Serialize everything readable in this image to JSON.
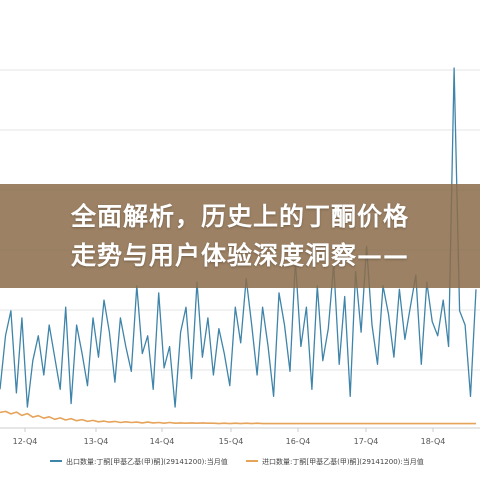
{
  "overlay": {
    "line1": "全面解析，历史上的丁酮价格",
    "line2": "走势与用户体验深度洞察——"
  },
  "colors": {
    "export_series": "#3f84a9",
    "import_series": "#e6a35a",
    "overlay_bg": "#8c6c4a",
    "grid": "#e6e6e6"
  },
  "chart_data": {
    "type": "line",
    "grid": true,
    "legend_position": "bottom",
    "title": "",
    "xlabel": "",
    "ylabel": "",
    "x_tick_labels": [
      "12-Q4",
      "13-Q4",
      "14-Q4",
      "15-Q4",
      "16-Q4",
      "17-Q4",
      "18-Q4"
    ],
    "ylim": [
      0,
      100
    ],
    "series": [
      {
        "name": "出口数量:丁酮[甲基乙基(甲)酮](29141200):当月值",
        "color": "#3f84a9",
        "values": [
          10,
          25,
          32,
          9,
          30,
          5,
          18,
          25,
          14,
          28,
          19,
          10,
          33,
          6,
          28,
          20,
          11,
          30,
          19,
          35,
          26,
          12,
          30,
          22,
          15,
          39,
          20,
          25,
          10,
          37,
          16,
          22,
          5,
          26,
          33,
          13,
          40,
          19,
          30,
          14,
          27,
          20,
          11,
          33,
          23,
          41,
          28,
          14,
          33,
          22,
          8,
          37,
          28,
          15,
          46,
          22,
          33,
          10,
          39,
          18,
          27,
          45,
          17,
          36,
          8,
          43,
          26,
          50,
          28,
          17,
          39,
          31,
          19,
          38,
          24,
          33,
          42,
          17,
          40,
          29,
          25,
          35,
          22,
          100,
          32,
          28,
          8,
          38
        ]
      },
      {
        "name": "进口数量:丁酮[甲基乙基(甲)酮](29141200):当月值",
        "color": "#e6a35a",
        "values": [
          3.5,
          3.8,
          3.1,
          3.6,
          2.7,
          3.2,
          2.2,
          2.6,
          1.9,
          2.3,
          1.6,
          2.0,
          1.4,
          1.8,
          1.2,
          1.5,
          1.0,
          1.3,
          0.9,
          1.1,
          0.8,
          1.0,
          0.7,
          0.9,
          0.7,
          0.8,
          0.6,
          0.8,
          0.6,
          0.7,
          0.5,
          0.7,
          0.5,
          0.6,
          0.5,
          0.6,
          0.5,
          0.6,
          0.5,
          0.5,
          0.4,
          0.5,
          0.4,
          0.5,
          0.4,
          0.5,
          0.4,
          0.5,
          0.4,
          0.4,
          0.4,
          0.4,
          0.4,
          0.4,
          0.4,
          0.4,
          0.4,
          0.4,
          0.4,
          0.4,
          0.4,
          0.4,
          0.4,
          0.4,
          0.4,
          0.4,
          0.4,
          0.4,
          0.4,
          0.4,
          0.4,
          0.4,
          0.4,
          0.4,
          0.4,
          0.4,
          0.4,
          0.4,
          0.4,
          0.4,
          0.4,
          0.4,
          0.4,
          0.4,
          0.4,
          0.4,
          0.4,
          0.4
        ]
      }
    ]
  }
}
